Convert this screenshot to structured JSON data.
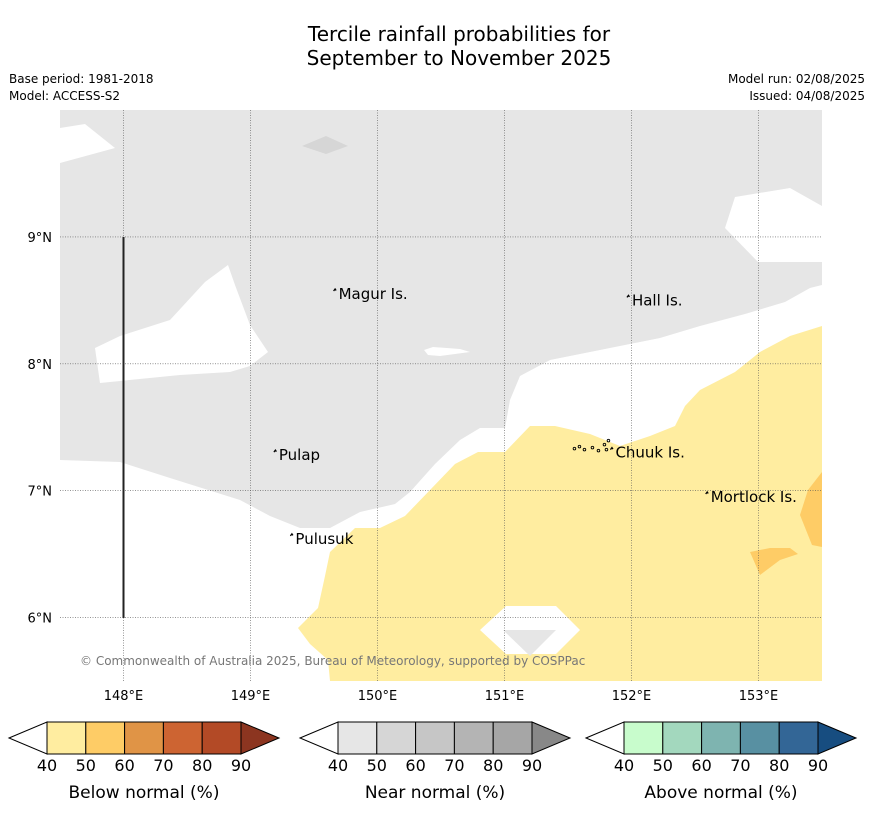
{
  "title": {
    "line1": "Tercile rainfall probabilities for",
    "line2": "September to November 2025"
  },
  "meta": {
    "base_period": "Base period: 1981-2018",
    "model": "Model: ACCESS-S2",
    "model_run": "Model run: 02/08/2025",
    "issued": "Issued: 04/08/2025"
  },
  "map": {
    "lon_range": [
      147.5,
      153.5
    ],
    "lat_range": [
      5.5,
      10.0
    ],
    "lat_ticks": [
      "6°N",
      "7°N",
      "8°N",
      "9°N"
    ],
    "lon_ticks": [
      "148°E",
      "149°E",
      "150°E",
      "151°E",
      "152°E",
      "153°E"
    ],
    "places": [
      {
        "name": "Magur Is.",
        "lon": 149.67,
        "lat": 8.55
      },
      {
        "name": "Hall Is.",
        "lon": 151.98,
        "lat": 8.5
      },
      {
        "name": "Pulap",
        "lon": 149.2,
        "lat": 7.28
      },
      {
        "name": "Chuuk Is.",
        "lon": 151.85,
        "lat": 7.3
      },
      {
        "name": "Mortlock Is.",
        "lon": 152.6,
        "lat": 6.95
      },
      {
        "name": "Pulusuk",
        "lon": 149.33,
        "lat": 6.62
      }
    ],
    "copyright": "© Commonwealth of Australia 2025, Bureau of Meteorology, supported by COSPPac",
    "colors": {
      "near_normal_40_50": "#e6e6e6",
      "near_normal_50_60": "#d6d6d6",
      "below_normal_40_50": "#ffeda0",
      "below_normal_50_60": "#fecc66"
    }
  },
  "colorbars": [
    {
      "label": "Below normal (%)",
      "ticks": [
        "40",
        "50",
        "60",
        "70",
        "80",
        "90"
      ],
      "colors": [
        "#ffeda0",
        "#fecc66",
        "#e09446",
        "#cd6432",
        "#b34a26",
        "#8c3520"
      ]
    },
    {
      "label": "Near normal (%)",
      "ticks": [
        "40",
        "50",
        "60",
        "70",
        "80",
        "90"
      ],
      "colors": [
        "#e6e6e6",
        "#d6d6d6",
        "#c6c6c6",
        "#b4b4b4",
        "#a6a6a6",
        "#888888"
      ]
    },
    {
      "label": "Above normal (%)",
      "ticks": [
        "40",
        "50",
        "60",
        "70",
        "80",
        "90"
      ],
      "colors": [
        "#c8fccc",
        "#a3d8be",
        "#7eb4b0",
        "#5890a2",
        "#336696",
        "#174d80"
      ]
    }
  ]
}
